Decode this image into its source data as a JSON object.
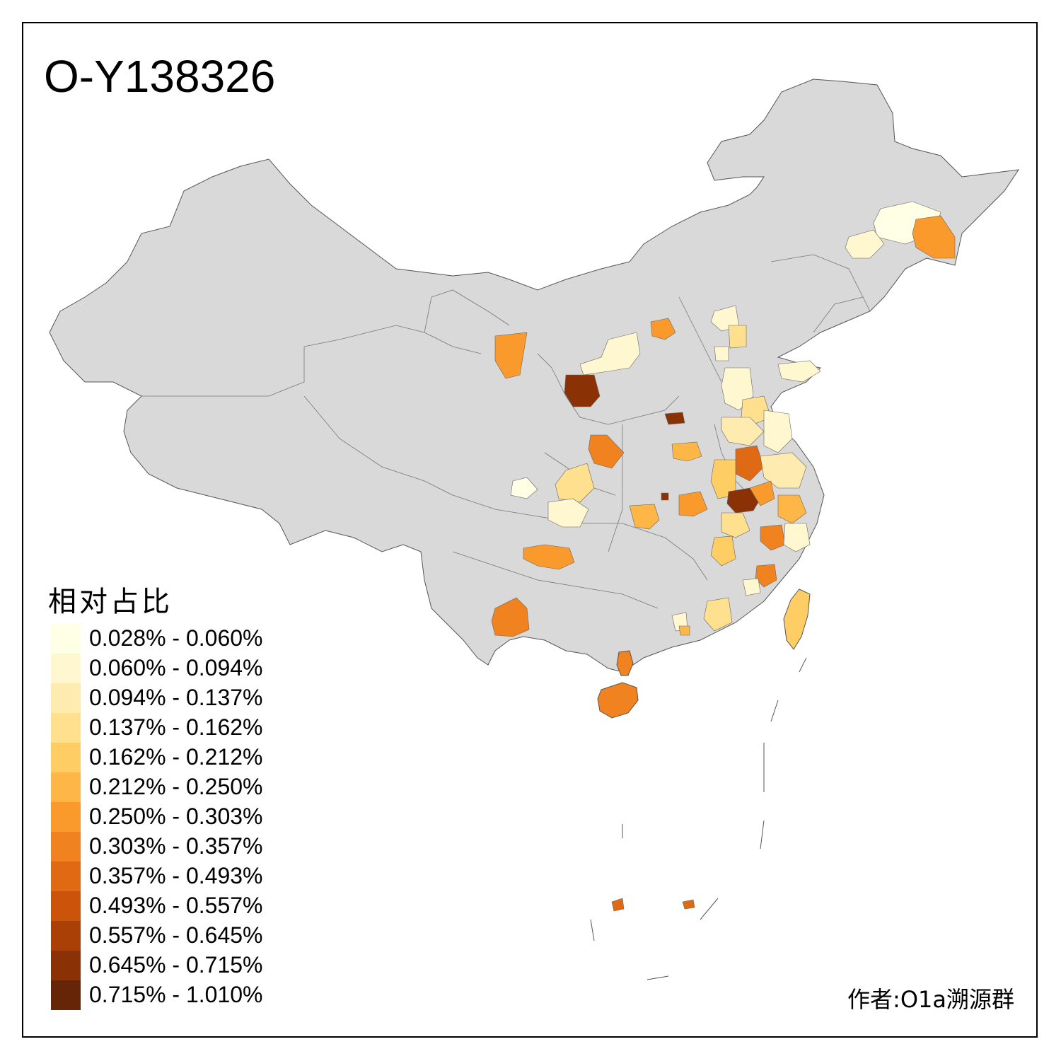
{
  "title": "O-Y138326",
  "legend": {
    "title": "相对占比",
    "items": [
      {
        "label": "0.028% - 0.060%",
        "color": "#ffffe5"
      },
      {
        "label": "0.060% - 0.094%",
        "color": "#fff7cf"
      },
      {
        "label": "0.094% - 0.137%",
        "color": "#feebb0"
      },
      {
        "label": "0.137% - 0.162%",
        "color": "#fee08f"
      },
      {
        "label": "0.162% - 0.212%",
        "color": "#fece65"
      },
      {
        "label": "0.212% - 0.250%",
        "color": "#feb646"
      },
      {
        "label": "0.250% - 0.303%",
        "color": "#fb9a2c"
      },
      {
        "label": "0.303% - 0.357%",
        "color": "#f0821f"
      },
      {
        "label": "0.357% - 0.493%",
        "color": "#e06913"
      },
      {
        "label": "0.493% - 0.557%",
        "color": "#cc530a"
      },
      {
        "label": "0.557% - 0.645%",
        "color": "#ab4006"
      },
      {
        "label": "0.645% - 0.715%",
        "color": "#8a3205"
      },
      {
        "label": "0.715% - 1.010%",
        "color": "#662506"
      }
    ]
  },
  "author": "作者:O1a溯源群",
  "colors": {
    "base_region": "#d9d9d9",
    "border": "#555555"
  }
}
